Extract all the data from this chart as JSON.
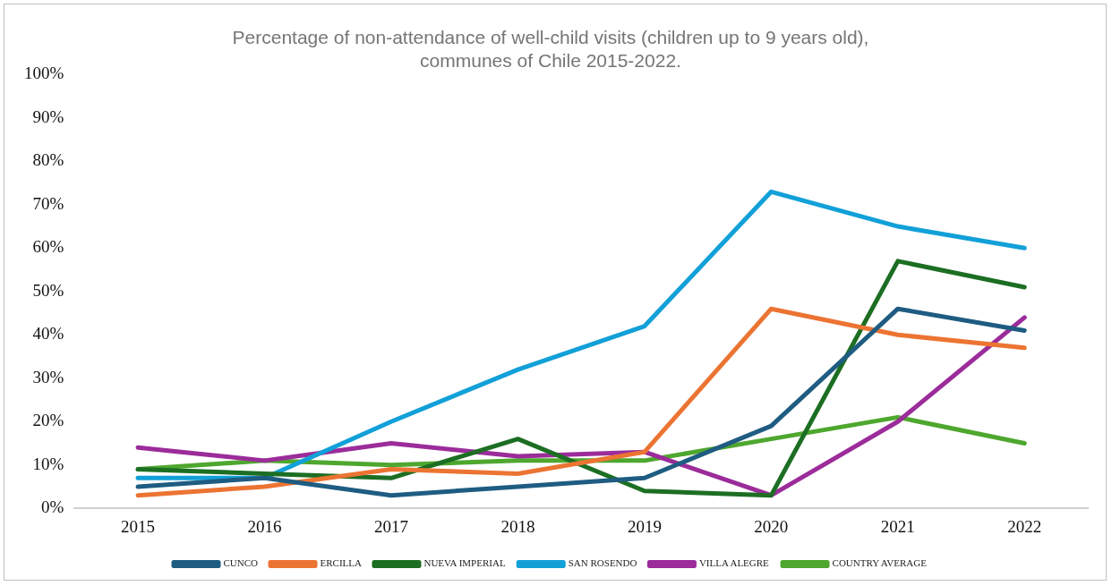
{
  "chart_data": {
    "type": "line",
    "title": [
      "Percentage of non-attendance of well-child visits (children up to 9 years old),",
      "communes of Chile 2015-2022."
    ],
    "categories": [
      "2015",
      "2016",
      "2017",
      "2018",
      "2019",
      "2020",
      "2021",
      "2022"
    ],
    "series": [
      {
        "name": "CUNCO",
        "color": "#1f5c82",
        "values": [
          5,
          7,
          3,
          5,
          7,
          19,
          46,
          41
        ]
      },
      {
        "name": "ERCILLA",
        "color": "#ec7432",
        "values": [
          3,
          5,
          9,
          8,
          13,
          46,
          40,
          37
        ]
      },
      {
        "name": "NUEVA IMPERIAL",
        "color": "#1c6e23",
        "values": [
          9,
          8,
          7,
          16,
          4,
          3,
          57,
          51
        ]
      },
      {
        "name": "SAN ROSENDO",
        "color": "#12a0d8",
        "values": [
          7,
          7,
          20,
          32,
          42,
          73,
          65,
          60
        ]
      },
      {
        "name": "VILLA ALEGRE",
        "color": "#9b2c9a",
        "values": [
          14,
          11,
          15,
          12,
          13,
          3,
          20,
          44
        ]
      },
      {
        "name": "COUNTRY AVERAGE",
        "color": "#4ea72e",
        "values": [
          9,
          11,
          10,
          11,
          11,
          16,
          21,
          15
        ]
      }
    ],
    "ylim": [
      0,
      100
    ],
    "yticks": [
      {
        "value": 0,
        "label": "0%"
      },
      {
        "value": 10,
        "label": "10%"
      },
      {
        "value": 20,
        "label": "20%"
      },
      {
        "value": 30,
        "label": "30%"
      },
      {
        "value": 40,
        "label": "40%"
      },
      {
        "value": 50,
        "label": "50%"
      },
      {
        "value": 60,
        "label": "60%"
      },
      {
        "value": 70,
        "label": "70%"
      },
      {
        "value": 80,
        "label": "80%"
      },
      {
        "value": 90,
        "label": "90%"
      },
      {
        "value": 100,
        "label": "100%"
      }
    ],
    "grid": false,
    "legend": "bottom",
    "marker": "none",
    "line_style": "solid"
  }
}
